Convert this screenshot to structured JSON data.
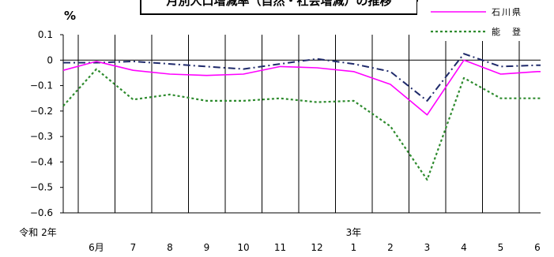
{
  "chart_data": {
    "type": "line",
    "title": "月別人口増減率（自然・社会増減）の推移",
    "ylabel": "%",
    "ylim": [
      -0.6,
      0.1
    ],
    "yticks": [
      "0.1",
      "0",
      "−0.1",
      "−0.2",
      "−0.3",
      "−0.4",
      "−0.5",
      "−0.6"
    ],
    "categories": [
      "6月",
      "7",
      "8",
      "9",
      "10",
      "11",
      "12",
      "1",
      "2",
      "3",
      "4",
      "5",
      "6"
    ],
    "year_labels": [
      {
        "label": "令和 2年",
        "index": 0
      },
      {
        "label": "3年",
        "index": 7
      }
    ],
    "series": [
      {
        "key": "national",
        "name": "",
        "color": "#1f2a6b",
        "style": "dashdot",
        "values": [
          -0.01,
          -0.005,
          -0.015,
          -0.025,
          -0.035,
          -0.015,
          0.005,
          -0.015,
          -0.045,
          -0.16,
          0.025,
          -0.025,
          -0.02
        ]
      },
      {
        "key": "ishikawa",
        "name": "石川県",
        "color": "#ff00ff",
        "style": "solid",
        "values": [
          -0.005,
          -0.04,
          -0.055,
          -0.06,
          -0.055,
          -0.025,
          -0.03,
          -0.045,
          -0.095,
          -0.215,
          0.0,
          -0.055,
          -0.045
        ]
      },
      {
        "key": "noto",
        "name": "能　登",
        "color": "#2e8b2e",
        "style": "dotted",
        "values": [
          -0.035,
          -0.155,
          -0.135,
          -0.16,
          -0.16,
          -0.15,
          -0.165,
          -0.16,
          -0.26,
          -0.47,
          -0.07,
          -0.15,
          -0.15
        ]
      }
    ],
    "lead_in": {
      "ishikawa": -0.04,
      "national": -0.01,
      "noto": -0.18
    },
    "legend": [
      {
        "key": "ishikawa",
        "label": "石川県"
      },
      {
        "key": "noto",
        "label": "能　登"
      }
    ],
    "grid": {
      "vertical": true,
      "horizontal": false
    }
  }
}
